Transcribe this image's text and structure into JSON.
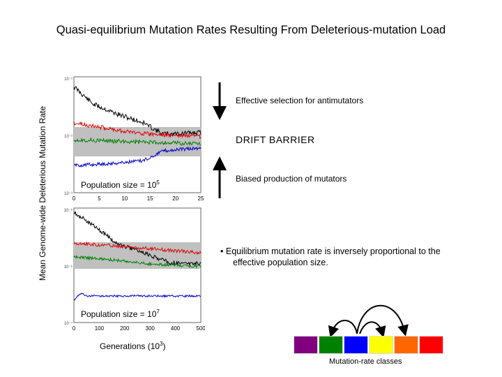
{
  "title": "Quasi-equilibrium Mutation Rates Resulting From Deleterious-mutation Load",
  "y_axis_label": "Mean Genome-wide Deleterious Mutation Rate",
  "annotations": {
    "effective_selection": "Effective selection for antimutators",
    "drift_barrier": "DRIFT BARRIER",
    "biased_production": "Biased production of mutators"
  },
  "bullet": {
    "marker": "•",
    "line1": "Equilibrium mutation rate is inversely proportional to the",
    "line2": "effective population size."
  },
  "panel_top": {
    "label_prefix": "Population size = 10",
    "label_exp": "5",
    "x_ticks": [
      "0",
      "5",
      "10",
      "15",
      "20",
      "25"
    ],
    "y_ticks": [
      "10⁻¹",
      "10⁻²",
      "10⁻³"
    ]
  },
  "panel_bottom": {
    "label_prefix": "Population size = 10",
    "label_exp": "7",
    "x_ticks": [
      "0",
      "100",
      "200",
      "300",
      "400",
      "500"
    ],
    "y_ticks": [
      "10⁻⁵",
      "10⁻⁶",
      "10⁻⁷"
    ]
  },
  "x_axis_label": {
    "prefix": "Generations (10",
    "exp": "3",
    "suffix": ")"
  },
  "mutation_classes": {
    "label": "Mutation-rate classes",
    "colors": [
      "#800080",
      "#008000",
      "#0000ff",
      "#ffff00",
      "#ff6600",
      "#ff0000"
    ]
  },
  "series_colors": {
    "black": "#000000",
    "red": "#e00000",
    "green": "#008000",
    "blue": "#0000cc",
    "band": "#c0c0c0"
  }
}
